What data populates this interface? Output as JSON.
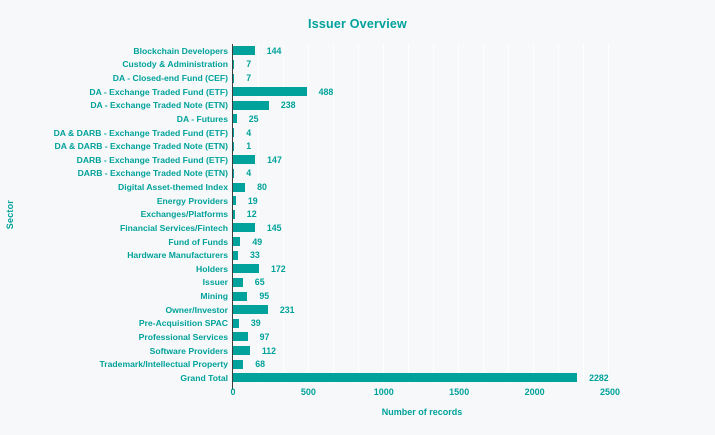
{
  "chart_data": {
    "type": "bar",
    "orientation": "horizontal",
    "title": "Issuer Overview",
    "xlabel": "Number of records",
    "ylabel": "Sector",
    "categories": [
      "Blockchain Developers",
      "Custody & Administration",
      "DA - Closed-end Fund (CEF)",
      "DA - Exchange Traded Fund (ETF)",
      "DA - Exchange Traded Note (ETN)",
      "DA - Futures",
      "DA & DARB - Exchange Traded Fund (ETF)",
      "DA & DARB - Exchange Traded Note (ETN)",
      "DARB - Exchange Traded Fund (ETF)",
      "DARB - Exchange Traded Note (ETN)",
      "Digital Asset-themed Index",
      "Energy Providers",
      "Exchanges/Platforms",
      "Financial Services/Fintech",
      "Fund of Funds",
      "Hardware Manufacturers",
      "Holders",
      "Issuer",
      "Mining",
      "Owner/Investor",
      "Pre-Acquisition SPAC",
      "Professional Services",
      "Software Providers",
      "Trademark/Intellectual Property",
      "Grand Total"
    ],
    "values": [
      144,
      7,
      7,
      488,
      238,
      25,
      4,
      1,
      147,
      4,
      80,
      19,
      12,
      145,
      49,
      33,
      172,
      65,
      95,
      231,
      39,
      97,
      112,
      68,
      2282
    ],
    "xlim": [
      0,
      2500
    ],
    "xticks": [
      0,
      500,
      1000,
      1500,
      2000,
      2500
    ],
    "grid": "vertical-minor-lines",
    "legend": "none",
    "colors": {
      "bar": "#00a29b",
      "text": "#00a29b",
      "axis_line": "#3c3c3c",
      "background": "#f7f8f9",
      "gridline": "#ffffff"
    }
  }
}
